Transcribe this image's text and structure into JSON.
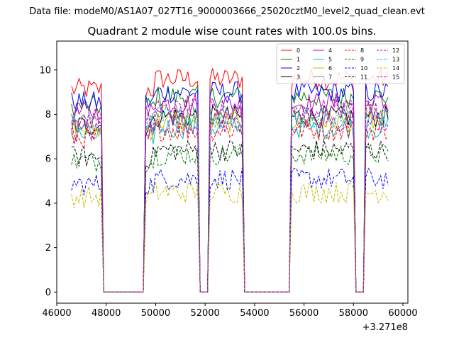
{
  "figure": {
    "suptitle": "Data file: modeM0/AS1A07_027T16_9000003666_25020cztM0_level2_quad_clean.evt",
    "offset_label": "+3.271e8"
  },
  "chart_data": {
    "type": "line",
    "title": "Quadrant 2 module wise count rates with 100.0s bins.",
    "xlabel": "",
    "ylabel": "",
    "xlim": [
      46000,
      60200
    ],
    "ylim": [
      -0.5,
      11.3
    ],
    "x_offset": 327100000,
    "xticks": [
      46000,
      48000,
      50000,
      52000,
      54000,
      56000,
      58000,
      60000
    ],
    "xtick_labels": [
      "46000",
      "48000",
      "50000",
      "52000",
      "54000",
      "56000",
      "58000",
      "60000"
    ],
    "yticks": [
      0,
      2,
      4,
      6,
      8,
      10
    ],
    "ytick_labels": [
      "0",
      "2",
      "4",
      "6",
      "8",
      "10"
    ],
    "grid": false,
    "legend_position": "top-right",
    "legend_columns": 4,
    "series": [
      {
        "name": "0",
        "color": "#ff0000",
        "dash": "solid",
        "level": 9.6
      },
      {
        "name": "1",
        "color": "#008000",
        "dash": "solid",
        "level": 8.8
      },
      {
        "name": "2",
        "color": "#0000ff",
        "dash": "solid",
        "level": 9.0
      },
      {
        "name": "3",
        "color": "#000000",
        "dash": "solid",
        "level": 7.9
      },
      {
        "name": "4",
        "color": "#bf00bf",
        "dash": "solid",
        "level": 8.5
      },
      {
        "name": "5",
        "color": "#00bfbf",
        "dash": "solid",
        "level": 7.4
      },
      {
        "name": "6",
        "color": "#bfbf00",
        "dash": "solid",
        "level": 7.7
      },
      {
        "name": "7",
        "color": "#808080",
        "dash": "solid",
        "level": 8.0
      },
      {
        "name": "8",
        "color": "#ff0000",
        "dash": "dashed",
        "level": 7.3
      },
      {
        "name": "9",
        "color": "#008000",
        "dash": "dashed",
        "level": 6.2
      },
      {
        "name": "10",
        "color": "#0000ff",
        "dash": "dashed",
        "level": 5.1
      },
      {
        "name": "11",
        "color": "#000000",
        "dash": "dashed",
        "level": 6.4
      },
      {
        "name": "12",
        "color": "#bf00bf",
        "dash": "dashed",
        "level": 7.6
      },
      {
        "name": "13",
        "color": "#00bfbf",
        "dash": "dashed",
        "level": 7.9
      },
      {
        "name": "14",
        "color": "#bfbf00",
        "dash": "dashed",
        "level": 4.5
      },
      {
        "name": "15",
        "color": "#bf00bf",
        "dash": "dashed",
        "level": 8.2
      }
    ],
    "active_segments": [
      [
        46600,
        47800
      ],
      [
        49600,
        51700
      ],
      [
        52150,
        53500
      ],
      [
        55500,
        58000
      ],
      [
        58500,
        59400
      ]
    ],
    "bin_size": 100
  }
}
